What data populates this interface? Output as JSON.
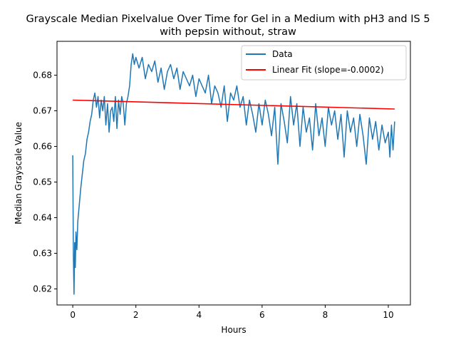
{
  "chart_data": {
    "type": "line",
    "title_line1": "Grayscale Median Pixelvalue Over Time for Gel in a Medium with pH3 and IS 5",
    "title_line2": "with pepsin without, straw",
    "xlabel": "Hours",
    "ylabel": "Median Grayscale Value",
    "xlim": [
      -0.5,
      10.7
    ],
    "ylim": [
      0.6155,
      0.6895
    ],
    "xticks": [
      0,
      2,
      4,
      6,
      8,
      10
    ],
    "yticks": [
      0.62,
      0.63,
      0.64,
      0.65,
      0.66,
      0.67,
      0.68
    ],
    "legend_position": "top-right",
    "series": [
      {
        "name": "Data",
        "color": "#1f77b4",
        "x": [
          0.0,
          0.02,
          0.04,
          0.06,
          0.08,
          0.1,
          0.13,
          0.16,
          0.2,
          0.25,
          0.3,
          0.35,
          0.4,
          0.45,
          0.5,
          0.55,
          0.6,
          0.65,
          0.7,
          0.75,
          0.8,
          0.85,
          0.9,
          0.95,
          1.0,
          1.05,
          1.1,
          1.15,
          1.2,
          1.25,
          1.3,
          1.35,
          1.4,
          1.45,
          1.5,
          1.55,
          1.6,
          1.65,
          1.7,
          1.75,
          1.8,
          1.85,
          1.9,
          1.95,
          2.0,
          2.1,
          2.2,
          2.3,
          2.4,
          2.5,
          2.6,
          2.7,
          2.8,
          2.9,
          3.0,
          3.1,
          3.2,
          3.3,
          3.4,
          3.5,
          3.6,
          3.7,
          3.8,
          3.9,
          4.0,
          4.1,
          4.2,
          4.3,
          4.4,
          4.5,
          4.6,
          4.7,
          4.8,
          4.9,
          5.0,
          5.1,
          5.2,
          5.3,
          5.4,
          5.5,
          5.6,
          5.7,
          5.8,
          5.9,
          6.0,
          6.1,
          6.2,
          6.3,
          6.4,
          6.5,
          6.6,
          6.7,
          6.8,
          6.9,
          7.0,
          7.1,
          7.2,
          7.3,
          7.4,
          7.5,
          7.6,
          7.7,
          7.8,
          7.9,
          8.0,
          8.1,
          8.2,
          8.3,
          8.4,
          8.5,
          8.6,
          8.7,
          8.8,
          8.9,
          9.0,
          9.1,
          9.2,
          9.3,
          9.4,
          9.5,
          9.6,
          9.7,
          9.8,
          9.9,
          10.0,
          10.05,
          10.1,
          10.15,
          10.2
        ],
        "y": [
          0.6575,
          0.629,
          0.6185,
          0.633,
          0.626,
          0.636,
          0.631,
          0.639,
          0.643,
          0.648,
          0.652,
          0.656,
          0.658,
          0.662,
          0.664,
          0.667,
          0.669,
          0.673,
          0.675,
          0.671,
          0.674,
          0.668,
          0.673,
          0.67,
          0.674,
          0.666,
          0.672,
          0.664,
          0.67,
          0.671,
          0.667,
          0.674,
          0.665,
          0.673,
          0.669,
          0.674,
          0.672,
          0.666,
          0.672,
          0.674,
          0.677,
          0.683,
          0.686,
          0.683,
          0.685,
          0.682,
          0.685,
          0.679,
          0.683,
          0.681,
          0.684,
          0.678,
          0.682,
          0.676,
          0.681,
          0.683,
          0.679,
          0.682,
          0.676,
          0.681,
          0.679,
          0.677,
          0.68,
          0.674,
          0.679,
          0.677,
          0.675,
          0.68,
          0.672,
          0.677,
          0.675,
          0.671,
          0.677,
          0.667,
          0.675,
          0.673,
          0.677,
          0.671,
          0.674,
          0.666,
          0.673,
          0.669,
          0.664,
          0.672,
          0.666,
          0.673,
          0.669,
          0.663,
          0.671,
          0.655,
          0.672,
          0.667,
          0.661,
          0.674,
          0.666,
          0.672,
          0.66,
          0.671,
          0.664,
          0.668,
          0.659,
          0.672,
          0.663,
          0.668,
          0.66,
          0.671,
          0.666,
          0.67,
          0.662,
          0.669,
          0.657,
          0.67,
          0.664,
          0.668,
          0.66,
          0.669,
          0.663,
          0.655,
          0.668,
          0.662,
          0.667,
          0.659,
          0.666,
          0.661,
          0.664,
          0.657,
          0.666,
          0.659,
          0.667
        ]
      },
      {
        "name": "Linear Fit (slope=-0.0002)",
        "color": "#ff0000",
        "x": [
          0.0,
          10.2
        ],
        "y": [
          0.673,
          0.6705
        ]
      }
    ]
  }
}
